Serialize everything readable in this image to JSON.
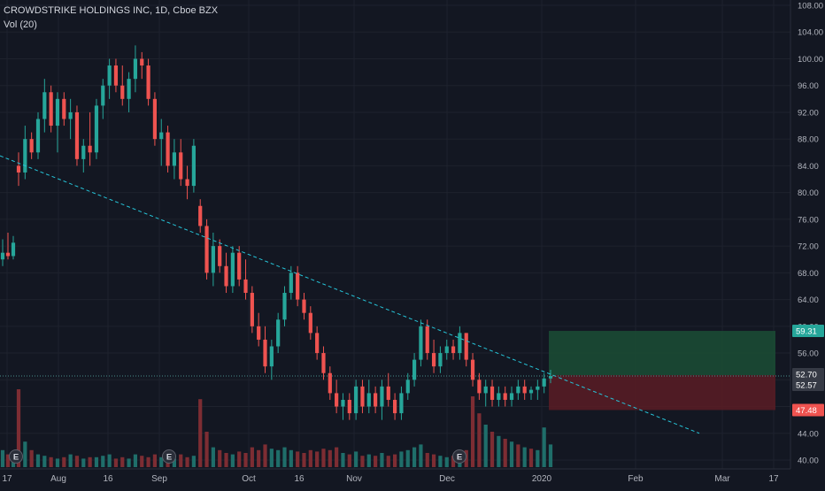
{
  "header": {
    "symbol_line": "CROWDSTRIKE HOLDINGS INC, 1D, Cboe BZX",
    "volume_line": "Vol (20)"
  },
  "colors": {
    "background": "#131722",
    "grid": "#1e222d",
    "up": "#26a69a",
    "down": "#ef5350",
    "up_volume": "#1f6e6a",
    "down_volume": "#7d2d33",
    "trendline": "#26c6da",
    "axis_text": "#b2b5be",
    "profit_zone": "#1b4d35",
    "loss_zone": "#5b1c24",
    "target_badge": "#26a69a",
    "stop_badge": "#ef5350",
    "entry_badge": "#363a45"
  },
  "chart_data": {
    "type": "candlestick",
    "title": "CROWDSTRIKE HOLDINGS INC, 1D, Cboe BZX",
    "indicator": "Vol (20)",
    "y_axis": {
      "ticks": [
        "108.00",
        "104.00",
        "100.00",
        "96.00",
        "92.00",
        "88.00",
        "84.00",
        "80.00",
        "76.00",
        "72.00",
        "68.00",
        "64.00",
        "60.00",
        "56.00",
        "52.00",
        "48.00",
        "44.00",
        "40.00"
      ],
      "range": [
        40,
        108
      ]
    },
    "x_axis": {
      "ticks": [
        "17",
        "Aug",
        "16",
        "Sep",
        "Oct",
        "16",
        "Nov",
        "Dec",
        "2020",
        "Feb",
        "Mar",
        "17"
      ]
    },
    "price_labels": [
      {
        "value": "59.31",
        "kind": "target"
      },
      {
        "value": "52.70",
        "kind": "entry"
      },
      {
        "value": "52.57",
        "kind": "last"
      },
      {
        "value": "47.48",
        "kind": "stop"
      }
    ],
    "earnings_markers": [
      "E",
      "E",
      "E"
    ],
    "trendline": {
      "start": [
        "Jul 17",
        85.5
      ],
      "end": [
        "Mar 1",
        44.0
      ],
      "style": "dashed"
    },
    "position": {
      "entry": 52.7,
      "target": 59.31,
      "stop": 47.48,
      "start": "Jan 3",
      "end": "Mar 17"
    },
    "candles": [
      {
        "o": 70,
        "h": 73,
        "l": 69,
        "c": 71
      },
      {
        "o": 71,
        "h": 74,
        "l": 70,
        "c": 70.5
      },
      {
        "o": 70.5,
        "h": 73.5,
        "l": 70,
        "c": 72.5
      },
      {
        "o": 84,
        "h": 86,
        "l": 81,
        "c": 83
      },
      {
        "o": 83,
        "h": 90,
        "l": 82,
        "c": 88
      },
      {
        "o": 88,
        "h": 89,
        "l": 85,
        "c": 86
      },
      {
        "o": 86,
        "h": 92,
        "l": 85,
        "c": 91
      },
      {
        "o": 91,
        "h": 97,
        "l": 89,
        "c": 95
      },
      {
        "o": 95,
        "h": 96,
        "l": 89,
        "c": 90
      },
      {
        "o": 90,
        "h": 95,
        "l": 86,
        "c": 94
      },
      {
        "o": 94,
        "h": 95,
        "l": 90,
        "c": 91
      },
      {
        "o": 91,
        "h": 94,
        "l": 88,
        "c": 92
      },
      {
        "o": 92,
        "h": 93,
        "l": 84,
        "c": 85
      },
      {
        "o": 85,
        "h": 88,
        "l": 83,
        "c": 87
      },
      {
        "o": 87,
        "h": 92,
        "l": 84,
        "c": 86
      },
      {
        "o": 86,
        "h": 94,
        "l": 85,
        "c": 93
      },
      {
        "o": 93,
        "h": 97,
        "l": 91,
        "c": 96
      },
      {
        "o": 96,
        "h": 100,
        "l": 94,
        "c": 99
      },
      {
        "o": 99,
        "h": 100,
        "l": 95,
        "c": 96
      },
      {
        "o": 96,
        "h": 99,
        "l": 93,
        "c": 94
      },
      {
        "o": 94,
        "h": 98,
        "l": 92,
        "c": 97
      },
      {
        "o": 97,
        "h": 102,
        "l": 95,
        "c": 100
      },
      {
        "o": 100,
        "h": 101,
        "l": 97,
        "c": 99
      },
      {
        "o": 99,
        "h": 100,
        "l": 93,
        "c": 94
      },
      {
        "o": 94,
        "h": 95,
        "l": 87,
        "c": 88
      },
      {
        "o": 88,
        "h": 91,
        "l": 84,
        "c": 89
      },
      {
        "o": 89,
        "h": 90,
        "l": 83,
        "c": 84
      },
      {
        "o": 84,
        "h": 88,
        "l": 82,
        "c": 86
      },
      {
        "o": 86,
        "h": 88,
        "l": 81,
        "c": 82
      },
      {
        "o": 82,
        "h": 84,
        "l": 79,
        "c": 81
      },
      {
        "o": 81,
        "h": 88,
        "l": 80,
        "c": 87
      },
      {
        "o": 78,
        "h": 79,
        "l": 74,
        "c": 75
      },
      {
        "o": 75,
        "h": 76,
        "l": 67,
        "c": 68
      },
      {
        "o": 68,
        "h": 74,
        "l": 66,
        "c": 72
      },
      {
        "o": 72,
        "h": 73,
        "l": 68,
        "c": 69
      },
      {
        "o": 69,
        "h": 71,
        "l": 65,
        "c": 66
      },
      {
        "o": 66,
        "h": 72,
        "l": 65,
        "c": 71
      },
      {
        "o": 71,
        "h": 72,
        "l": 66,
        "c": 67
      },
      {
        "o": 67,
        "h": 70,
        "l": 64,
        "c": 65
      },
      {
        "o": 65,
        "h": 66,
        "l": 59,
        "c": 60
      },
      {
        "o": 60,
        "h": 62,
        "l": 57,
        "c": 58
      },
      {
        "o": 58,
        "h": 60,
        "l": 53,
        "c": 54
      },
      {
        "o": 54,
        "h": 58,
        "l": 52,
        "c": 57
      },
      {
        "o": 57,
        "h": 62,
        "l": 56,
        "c": 61
      },
      {
        "o": 61,
        "h": 66,
        "l": 60,
        "c": 65
      },
      {
        "o": 65,
        "h": 69,
        "l": 64,
        "c": 68
      },
      {
        "o": 68,
        "h": 69,
        "l": 63,
        "c": 64
      },
      {
        "o": 64,
        "h": 65,
        "l": 61,
        "c": 62
      },
      {
        "o": 62,
        "h": 63,
        "l": 58,
        "c": 59
      },
      {
        "o": 59,
        "h": 60,
        "l": 55,
        "c": 56
      },
      {
        "o": 56,
        "h": 57,
        "l": 52,
        "c": 53
      },
      {
        "o": 53,
        "h": 54,
        "l": 49,
        "c": 50
      },
      {
        "o": 50,
        "h": 52,
        "l": 47,
        "c": 48
      },
      {
        "o": 48,
        "h": 50,
        "l": 46,
        "c": 49
      },
      {
        "o": 49,
        "h": 50,
        "l": 46,
        "c": 47
      },
      {
        "o": 47,
        "h": 52,
        "l": 46,
        "c": 51
      },
      {
        "o": 51,
        "h": 52,
        "l": 47,
        "c": 48
      },
      {
        "o": 48,
        "h": 52,
        "l": 47,
        "c": 50
      },
      {
        "o": 50,
        "h": 51,
        "l": 47,
        "c": 48
      },
      {
        "o": 48,
        "h": 52,
        "l": 46,
        "c": 51
      },
      {
        "o": 51,
        "h": 53,
        "l": 48,
        "c": 49
      },
      {
        "o": 49,
        "h": 50,
        "l": 46,
        "c": 47
      },
      {
        "o": 47,
        "h": 51,
        "l": 46,
        "c": 50
      },
      {
        "o": 50,
        "h": 53,
        "l": 49,
        "c": 52
      },
      {
        "o": 52,
        "h": 56,
        "l": 51,
        "c": 55
      },
      {
        "o": 55,
        "h": 61,
        "l": 54,
        "c": 60
      },
      {
        "o": 60,
        "h": 61,
        "l": 55,
        "c": 56
      },
      {
        "o": 56,
        "h": 58,
        "l": 53,
        "c": 54
      },
      {
        "o": 54,
        "h": 57,
        "l": 53,
        "c": 56
      },
      {
        "o": 56,
        "h": 58,
        "l": 55,
        "c": 57
      },
      {
        "o": 57,
        "h": 58,
        "l": 55,
        "c": 56
      },
      {
        "o": 56,
        "h": 60,
        "l": 55,
        "c": 59
      },
      {
        "o": 59,
        "h": 59,
        "l": 54,
        "c": 55
      },
      {
        "o": 55,
        "h": 56,
        "l": 51,
        "c": 52
      },
      {
        "o": 52,
        "h": 53,
        "l": 49,
        "c": 50
      },
      {
        "o": 50,
        "h": 52,
        "l": 48,
        "c": 51
      },
      {
        "o": 51,
        "h": 52,
        "l": 48,
        "c": 49
      },
      {
        "o": 49,
        "h": 51,
        "l": 48,
        "c": 50
      },
      {
        "o": 50,
        "h": 51,
        "l": 48,
        "c": 49
      },
      {
        "o": 49,
        "h": 51,
        "l": 48,
        "c": 50
      },
      {
        "o": 50,
        "h": 52,
        "l": 49,
        "c": 51
      },
      {
        "o": 51,
        "h": 52,
        "l": 49,
        "c": 50
      },
      {
        "o": 50,
        "h": 51,
        "l": 49,
        "c": 50.5
      },
      {
        "o": 50.5,
        "h": 52,
        "l": 49,
        "c": 51
      },
      {
        "o": 51,
        "h": 53,
        "l": 50,
        "c": 52.2
      },
      {
        "o": 52.2,
        "h": 53.5,
        "l": 51.5,
        "c": 52.57
      }
    ],
    "volumes": [
      {
        "v": 12,
        "up": true
      },
      {
        "v": 9,
        "up": false
      },
      {
        "v": 10,
        "up": true
      },
      {
        "v": 55,
        "up": false
      },
      {
        "v": 18,
        "up": true
      },
      {
        "v": 12,
        "up": false
      },
      {
        "v": 9,
        "up": true
      },
      {
        "v": 8,
        "up": true
      },
      {
        "v": 7,
        "up": false
      },
      {
        "v": 6,
        "up": true
      },
      {
        "v": 7,
        "up": false
      },
      {
        "v": 9,
        "up": true
      },
      {
        "v": 8,
        "up": false
      },
      {
        "v": 6,
        "up": true
      },
      {
        "v": 7,
        "up": false
      },
      {
        "v": 7,
        "up": true
      },
      {
        "v": 8,
        "up": true
      },
      {
        "v": 9,
        "up": true
      },
      {
        "v": 6,
        "up": false
      },
      {
        "v": 7,
        "up": false
      },
      {
        "v": 6,
        "up": true
      },
      {
        "v": 9,
        "up": true
      },
      {
        "v": 8,
        "up": false
      },
      {
        "v": 7,
        "up": false
      },
      {
        "v": 9,
        "up": false
      },
      {
        "v": 7,
        "up": true
      },
      {
        "v": 8,
        "up": false
      },
      {
        "v": 6,
        "up": true
      },
      {
        "v": 9,
        "up": false
      },
      {
        "v": 7,
        "up": false
      },
      {
        "v": 8,
        "up": true
      },
      {
        "v": 48,
        "up": false
      },
      {
        "v": 25,
        "up": false
      },
      {
        "v": 14,
        "up": true
      },
      {
        "v": 12,
        "up": false
      },
      {
        "v": 10,
        "up": false
      },
      {
        "v": 9,
        "up": true
      },
      {
        "v": 11,
        "up": false
      },
      {
        "v": 10,
        "up": false
      },
      {
        "v": 14,
        "up": false
      },
      {
        "v": 12,
        "up": false
      },
      {
        "v": 16,
        "up": false
      },
      {
        "v": 13,
        "up": true
      },
      {
        "v": 12,
        "up": true
      },
      {
        "v": 14,
        "up": true
      },
      {
        "v": 12,
        "up": true
      },
      {
        "v": 11,
        "up": false
      },
      {
        "v": 10,
        "up": false
      },
      {
        "v": 12,
        "up": false
      },
      {
        "v": 11,
        "up": false
      },
      {
        "v": 13,
        "up": false
      },
      {
        "v": 12,
        "up": false
      },
      {
        "v": 14,
        "up": false
      },
      {
        "v": 10,
        "up": true
      },
      {
        "v": 9,
        "up": false
      },
      {
        "v": 11,
        "up": true
      },
      {
        "v": 8,
        "up": false
      },
      {
        "v": 9,
        "up": true
      },
      {
        "v": 8,
        "up": false
      },
      {
        "v": 10,
        "up": true
      },
      {
        "v": 8,
        "up": false
      },
      {
        "v": 9,
        "up": false
      },
      {
        "v": 11,
        "up": true
      },
      {
        "v": 12,
        "up": true
      },
      {
        "v": 14,
        "up": true
      },
      {
        "v": 16,
        "up": true
      },
      {
        "v": 10,
        "up": false
      },
      {
        "v": 9,
        "up": false
      },
      {
        "v": 8,
        "up": true
      },
      {
        "v": 7,
        "up": true
      },
      {
        "v": 8,
        "up": false
      },
      {
        "v": 9,
        "up": true
      },
      {
        "v": 12,
        "up": false
      },
      {
        "v": 50,
        "up": false
      },
      {
        "v": 38,
        "up": false
      },
      {
        "v": 30,
        "up": true
      },
      {
        "v": 25,
        "up": false
      },
      {
        "v": 22,
        "up": true
      },
      {
        "v": 20,
        "up": false
      },
      {
        "v": 18,
        "up": true
      },
      {
        "v": 16,
        "up": false
      },
      {
        "v": 14,
        "up": true
      },
      {
        "v": 13,
        "up": false
      },
      {
        "v": 12,
        "up": true
      },
      {
        "v": 28,
        "up": true
      },
      {
        "v": 16,
        "up": true
      }
    ]
  }
}
